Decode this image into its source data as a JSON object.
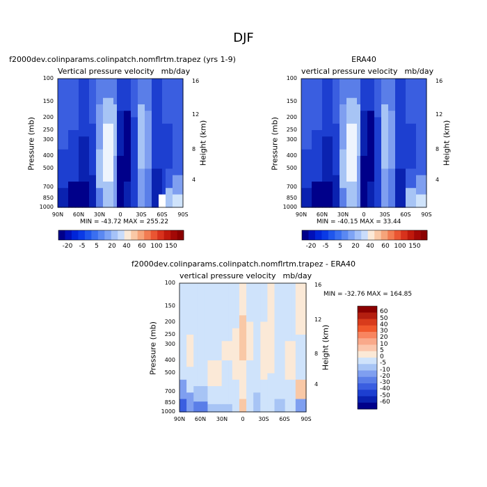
{
  "figure": {
    "title": "DJF"
  },
  "panels": {
    "model": {
      "title": "f2000dev.colinparams.colinpatch.nomflrtm.trapez (yrs 1-9)",
      "variable": "Vertical pressure velocity",
      "units": "mb/day",
      "stats": "MIN = -43.72   MAX = 255.22"
    },
    "obs": {
      "title": "ERA40",
      "variable": "vertical pressure velocity",
      "units": "mb/day",
      "stats": "MIN = -40.15   MAX =  33.44"
    },
    "diff": {
      "title": "f2000dev.colinparams.colinpatch.nomflrtm.trapez - ERA40",
      "variable": "vertical pressure velocity",
      "units": "mb/day",
      "stats": "MIN = -32.76   MAX = 164.85"
    }
  },
  "axes": {
    "ylabel": "Pressure (mb)",
    "y2label": "Height (km)",
    "pressure_ticks": [
      "100",
      "150",
      "200",
      "250",
      "300",
      "400",
      "500",
      "700",
      "850",
      "1000"
    ],
    "height_ticks": [
      "16",
      "12",
      "8",
      "4"
    ],
    "lat_ticks": [
      "90N",
      "60N",
      "30N",
      "0",
      "30S",
      "60S",
      "90S"
    ]
  },
  "colorbars": {
    "top_labels": [
      "-20",
      "-5",
      "5",
      "20",
      "40",
      "60",
      "100",
      "150"
    ],
    "top_labels_left": [
      "-20",
      "-5",
      "5",
      "20",
      "40",
      "60",
      "100",
      "150"
    ],
    "diff_labels": [
      "60",
      "50",
      "40",
      "30",
      "20",
      "10",
      "5",
      "0",
      "-5",
      "-10",
      "-20",
      "-30",
      "-40",
      "-50",
      "-60"
    ]
  },
  "colors": {
    "deep_blue": "#00008a",
    "blue": "#1f5ce6",
    "light_blue": "#cfe3fb",
    "cream": "#fbe9d7",
    "dark_red": "#8b0000"
  },
  "chart_data": [
    {
      "type": "heatmap",
      "title": "f2000dev.colinparams.colinpatch.nomflrtm.trapez (yrs 1-9)",
      "subtitle": "Vertical pressure velocity",
      "units": "mb/day",
      "xlabel": "",
      "ylabel": "Pressure (mb)",
      "y2label": "Height (km)",
      "x_ticks": [
        "90N",
        "60N",
        "30N",
        "0",
        "30S",
        "60S",
        "90S"
      ],
      "y_ticks": [
        100,
        150,
        200,
        250,
        300,
        400,
        500,
        700,
        850,
        1000
      ],
      "y_scale": "log",
      "ylim": [
        1000,
        100
      ],
      "min": -43.72,
      "max": 255.22
    },
    {
      "type": "heatmap",
      "title": "ERA40",
      "subtitle": "vertical pressure velocity",
      "units": "mb/day",
      "xlabel": "",
      "ylabel": "Pressure (mb)",
      "y2label": "Height (km)",
      "x_ticks": [
        "90N",
        "60N",
        "30N",
        "0",
        "30S",
        "60S",
        "90S"
      ],
      "y_ticks": [
        100,
        150,
        200,
        250,
        300,
        400,
        500,
        700,
        850,
        1000
      ],
      "y_scale": "log",
      "ylim": [
        1000,
        100
      ],
      "min": -40.15,
      "max": 33.44
    },
    {
      "type": "heatmap",
      "title": "f2000dev.colinparams.colinpatch.nomflrtm.trapez - ERA40",
      "subtitle": "vertical pressure velocity",
      "units": "mb/day",
      "xlabel": "",
      "ylabel": "Pressure (mb)",
      "y2label": "Height (km)",
      "x_ticks": [
        "90N",
        "60N",
        "30N",
        "0",
        "30S",
        "60S",
        "90S"
      ],
      "y_ticks": [
        100,
        150,
        200,
        250,
        300,
        400,
        500,
        700,
        850,
        1000
      ],
      "y_scale": "log",
      "ylim": [
        1000,
        100
      ],
      "min": -32.76,
      "max": 164.85,
      "colorbar_levels": [
        -60,
        -50,
        -40,
        -30,
        -20,
        -10,
        -5,
        0,
        5,
        10,
        20,
        30,
        40,
        50,
        60
      ]
    }
  ]
}
